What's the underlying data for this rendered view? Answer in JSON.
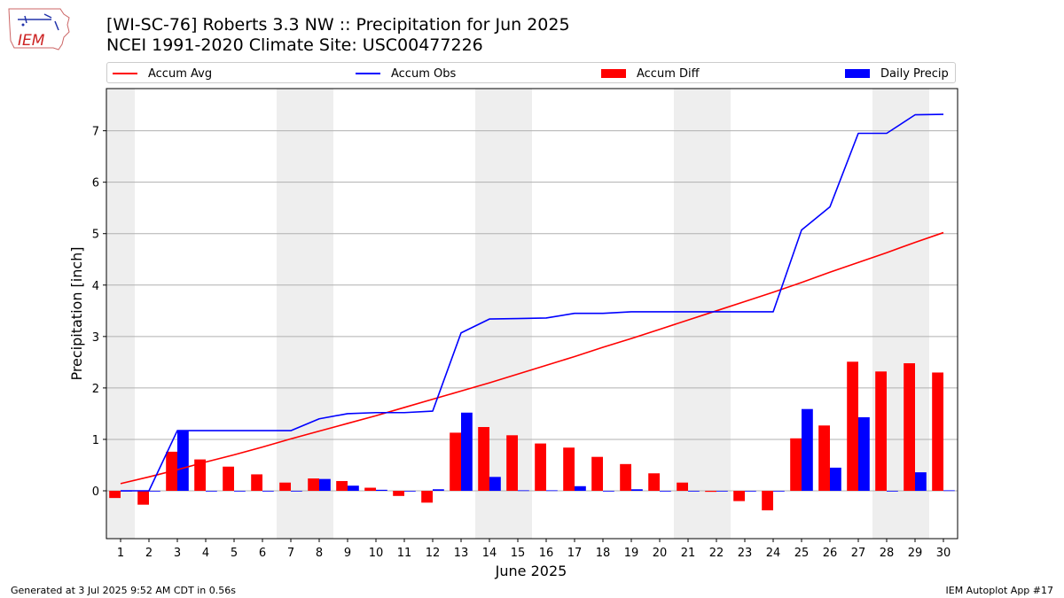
{
  "header": {
    "title_line1": "[WI-SC-76] Roberts 3.3 NW :: Precipitation for Jun 2025",
    "title_line2": "NCEI 1991-2020 Climate Site: USC00477226",
    "logo_text": "IEM"
  },
  "footer": {
    "left": "Generated at 3 Jul 2025 9:52 AM CDT in 0.56s",
    "right": "IEM Autoplot App #17"
  },
  "colors": {
    "avg": "#ff0000",
    "obs": "#0000ff",
    "diff": "#ff0000",
    "daily": "#0000ff",
    "weekend": "#eeeeee",
    "grid": "#b0b0b0"
  },
  "chart_data": {
    "type": "bar",
    "title": "[WI-SC-76] Roberts 3.3 NW :: Precipitation for Jun 2025",
    "subtitle": "NCEI 1991-2020 Climate Site: USC00477226",
    "xlabel": "June 2025",
    "ylabel": "Precipitation [inch]",
    "xlim": [
      0.5,
      30.5
    ],
    "ylim": [
      -0.93,
      7.82
    ],
    "x": [
      1,
      2,
      3,
      4,
      5,
      6,
      7,
      8,
      9,
      10,
      11,
      12,
      13,
      14,
      15,
      16,
      17,
      18,
      19,
      20,
      21,
      22,
      23,
      24,
      25,
      26,
      27,
      28,
      29,
      30
    ],
    "x_tick_labels": [
      "1",
      "2",
      "3",
      "4",
      "5",
      "6",
      "7",
      "8",
      "9",
      "10",
      "11",
      "12",
      "13",
      "14",
      "15",
      "16",
      "17",
      "18",
      "19",
      "20",
      "21",
      "22",
      "23",
      "24",
      "25",
      "26",
      "27",
      "28",
      "29",
      "30"
    ],
    "y_ticks": [
      0,
      1,
      2,
      3,
      4,
      5,
      6,
      7
    ],
    "y_tick_labels": [
      "0",
      "1",
      "2",
      "3",
      "4",
      "5",
      "6",
      "7"
    ],
    "grid": "horizontal",
    "legend_position": "top",
    "weekend_shading": [
      [
        1,
        1
      ],
      [
        7,
        8
      ],
      [
        14,
        15
      ],
      [
        21,
        22
      ],
      [
        28,
        29
      ]
    ],
    "series": [
      {
        "name": "Accum Avg",
        "type": "line",
        "color": "#ff0000",
        "values": [
          0.14,
          0.27,
          0.41,
          0.56,
          0.7,
          0.85,
          1.01,
          1.16,
          1.31,
          1.46,
          1.62,
          1.78,
          1.94,
          2.1,
          2.27,
          2.44,
          2.61,
          2.79,
          2.96,
          3.14,
          3.32,
          3.5,
          3.68,
          3.86,
          4.05,
          4.25,
          4.44,
          4.63,
          4.83,
          5.02
        ]
      },
      {
        "name": "Accum Obs",
        "type": "line",
        "color": "#0000ff",
        "values": [
          0.0,
          0.0,
          1.17,
          1.17,
          1.17,
          1.17,
          1.17,
          1.4,
          1.5,
          1.52,
          1.52,
          1.55,
          3.07,
          3.34,
          3.35,
          3.36,
          3.45,
          3.45,
          3.48,
          3.48,
          3.48,
          3.48,
          3.48,
          3.48,
          5.07,
          5.52,
          6.95,
          6.95,
          7.31,
          7.32
        ]
      },
      {
        "name": "Accum Diff",
        "type": "bar",
        "color": "#ff0000",
        "values": [
          -0.14,
          -0.27,
          0.76,
          0.61,
          0.47,
          0.32,
          0.16,
          0.24,
          0.19,
          0.06,
          -0.1,
          -0.23,
          1.13,
          1.24,
          1.08,
          0.92,
          0.84,
          0.66,
          0.52,
          0.34,
          0.16,
          -0.02,
          -0.2,
          -0.38,
          1.02,
          1.27,
          2.51,
          2.32,
          2.48,
          2.3
        ]
      },
      {
        "name": "Daily Precip",
        "type": "bar",
        "color": "#0000ff",
        "values": [
          0.0,
          0.0,
          1.17,
          0.0,
          0.0,
          0.0,
          0.0,
          0.23,
          0.1,
          0.02,
          0.0,
          0.03,
          1.52,
          0.27,
          0.01,
          0.01,
          0.09,
          0.0,
          0.03,
          0.0,
          0.0,
          0.0,
          0.0,
          0.0,
          1.59,
          0.45,
          1.43,
          0.0,
          0.36,
          0.01
        ]
      }
    ]
  }
}
